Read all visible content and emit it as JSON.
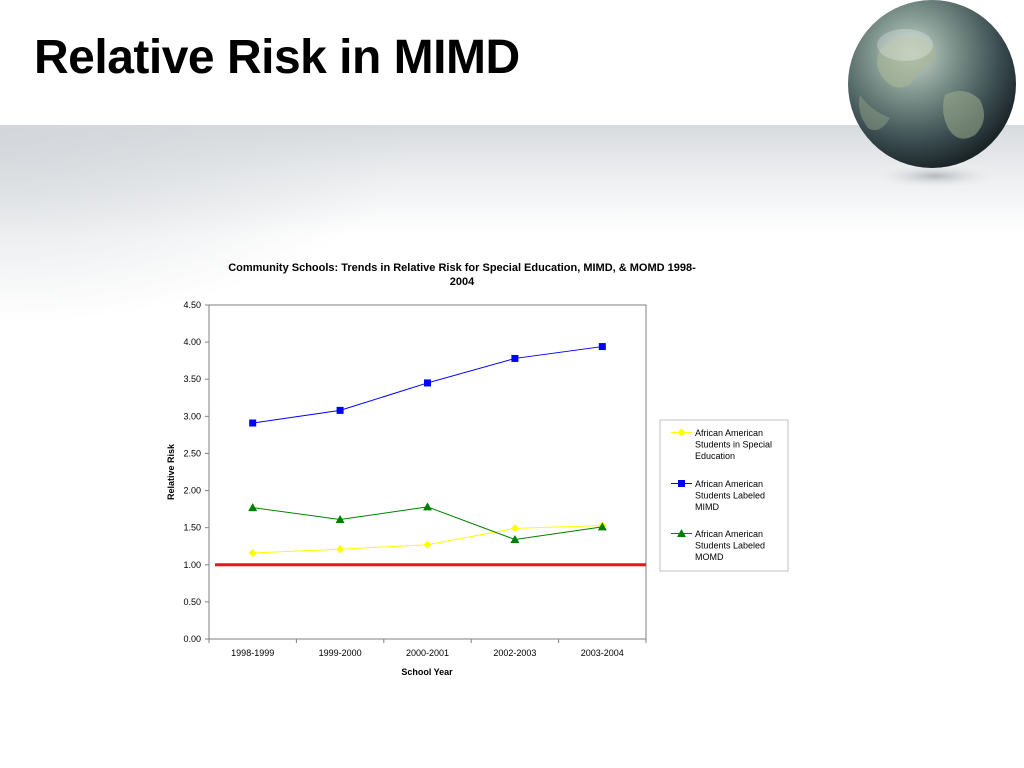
{
  "slide": {
    "title": "Relative Risk in MIMD"
  },
  "chart_data": {
    "type": "line",
    "title_lines": [
      "Community Schools: Trends in Relative Risk for Special Education, MIMD, & MOMD 1998-",
      "2004"
    ],
    "xlabel": "School Year",
    "ylabel": "Relative Risk",
    "categories": [
      "1998-1999",
      "1999-2000",
      "2000-2001",
      "2002-2003",
      "2003-2004"
    ],
    "ylim": [
      0,
      4.5
    ],
    "yticks": [
      "0.00",
      "0.50",
      "1.00",
      "1.50",
      "2.00",
      "2.50",
      "3.00",
      "3.50",
      "4.00",
      "4.50"
    ],
    "reference_line": {
      "value": 1.0,
      "color": "#e8161b"
    },
    "grid": false,
    "legend_position": "right",
    "series": [
      {
        "name_lines": [
          "African American",
          "Students in Special",
          "Education"
        ],
        "values": [
          1.16,
          1.21,
          1.27,
          1.49,
          1.53
        ],
        "color": "#ffff00",
        "marker": "diamond"
      },
      {
        "name_lines": [
          "African American",
          "Students Labeled",
          "MIMD"
        ],
        "values": [
          2.91,
          3.08,
          3.45,
          3.78,
          3.94
        ],
        "color": "#0000ff",
        "marker": "square"
      },
      {
        "name_lines": [
          "African American",
          "Students Labeled",
          "MOMD"
        ],
        "values": [
          1.77,
          1.61,
          1.78,
          1.34,
          1.51
        ],
        "color": "#008000",
        "marker": "triangle"
      }
    ]
  }
}
